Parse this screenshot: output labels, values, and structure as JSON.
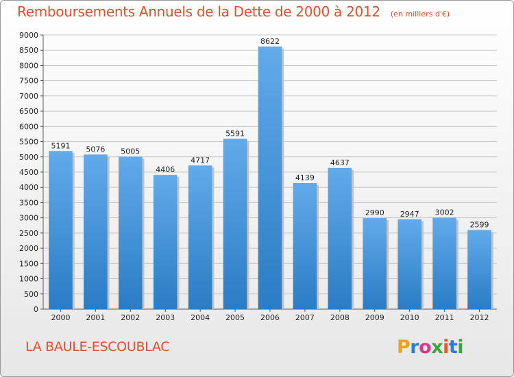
{
  "header": {
    "title": "Remboursements Annuels de la Dette de 2000 à 2012",
    "unit": "(en milliers d'€)"
  },
  "footer": {
    "location": "LA BAULE-ESCOUBLAC",
    "logo": "Proxiti"
  },
  "colors": {
    "title": "#e0502a",
    "bar_light": "#62aaea",
    "bar_dark": "#2a7cc4"
  },
  "chart_data": {
    "type": "bar",
    "title": "Remboursements Annuels de la Dette de 2000 à 2012",
    "xlabel": "",
    "ylabel": "",
    "categories": [
      "2000",
      "2001",
      "2002",
      "2003",
      "2004",
      "2005",
      "2006",
      "2007",
      "2008",
      "2009",
      "2010",
      "2011",
      "2012"
    ],
    "values": [
      5191,
      5076,
      5005,
      4406,
      4717,
      5591,
      8622,
      4139,
      4637,
      2990,
      2947,
      3002,
      2599
    ],
    "ylim": [
      0,
      9000
    ],
    "yticks": [
      0,
      500,
      1000,
      1500,
      2000,
      2500,
      3000,
      3500,
      4000,
      4500,
      5000,
      5500,
      6000,
      6500,
      7000,
      7500,
      8000,
      8500,
      9000
    ],
    "grid": true,
    "show_value_labels": true
  }
}
